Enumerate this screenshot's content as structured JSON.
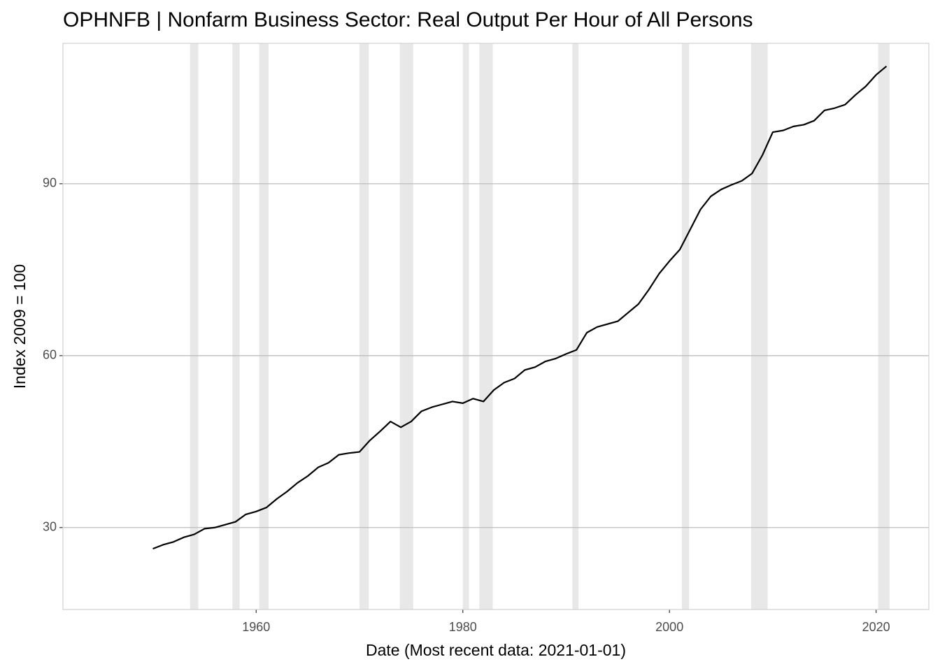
{
  "chart_data": {
    "type": "line",
    "title": "OPHNFB | Nonfarm Business Sector: Real Output Per Hour of All Persons",
    "x_label": "Date (Most recent data: 2021-01-01)",
    "y_label": "Index 2009 = 100",
    "x": [
      1950,
      1951,
      1952,
      1953,
      1954,
      1955,
      1956,
      1957,
      1958,
      1959,
      1960,
      1961,
      1962,
      1963,
      1964,
      1965,
      1966,
      1967,
      1968,
      1969,
      1970,
      1971,
      1972,
      1973,
      1974,
      1975,
      1976,
      1977,
      1978,
      1979,
      1980,
      1981,
      1982,
      1983,
      1984,
      1985,
      1986,
      1987,
      1988,
      1989,
      1990,
      1991,
      1992,
      1993,
      1994,
      1995,
      1996,
      1997,
      1998,
      1999,
      2000,
      2001,
      2002,
      2003,
      2004,
      2005,
      2006,
      2007,
      2008,
      2009,
      2010,
      2011,
      2012,
      2013,
      2014,
      2015,
      2016,
      2017,
      2018,
      2019,
      2020,
      2021
    ],
    "values": [
      26.3,
      27.0,
      27.5,
      28.3,
      28.8,
      29.8,
      30.0,
      30.5,
      31.0,
      32.3,
      32.8,
      33.5,
      35.0,
      36.3,
      37.8,
      39.0,
      40.5,
      41.3,
      42.7,
      43.0,
      43.2,
      45.2,
      46.8,
      48.5,
      47.5,
      48.5,
      50.3,
      51.0,
      51.5,
      52.0,
      51.7,
      52.5,
      52.0,
      54.0,
      55.3,
      56.0,
      57.5,
      58.0,
      59.0,
      59.5,
      60.3,
      61.0,
      64.0,
      65.0,
      65.5,
      66.0,
      67.5,
      69.0,
      71.5,
      74.3,
      76.5,
      78.5,
      82.0,
      85.5,
      87.8,
      89.0,
      89.8,
      90.5,
      91.8,
      95.0,
      99.0,
      99.3,
      100.0,
      100.3,
      101.0,
      102.8,
      103.2,
      103.8,
      105.5,
      107.0,
      109.0,
      110.5
    ],
    "color": "#000000",
    "recessions": [
      [
        1953.6,
        1954.4
      ],
      [
        1957.7,
        1958.4
      ],
      [
        1960.3,
        1961.2
      ],
      [
        1970.0,
        1970.9
      ],
      [
        1973.9,
        1975.2
      ],
      [
        1980.0,
        1980.6
      ],
      [
        1981.6,
        1982.9
      ],
      [
        1990.6,
        1991.2
      ],
      [
        2001.2,
        2001.9
      ],
      [
        2007.9,
        2009.5
      ],
      [
        2020.2,
        2021.3
      ]
    ],
    "recession_color": "#e8e8e8",
    "xlim": [
      1941.3,
      2025.1
    ],
    "xticks": [
      1960,
      1980,
      2000,
      2020
    ],
    "ylim": [
      15.7,
      114.5
    ],
    "yticks": [
      30,
      60,
      90
    ],
    "grid": "y"
  }
}
